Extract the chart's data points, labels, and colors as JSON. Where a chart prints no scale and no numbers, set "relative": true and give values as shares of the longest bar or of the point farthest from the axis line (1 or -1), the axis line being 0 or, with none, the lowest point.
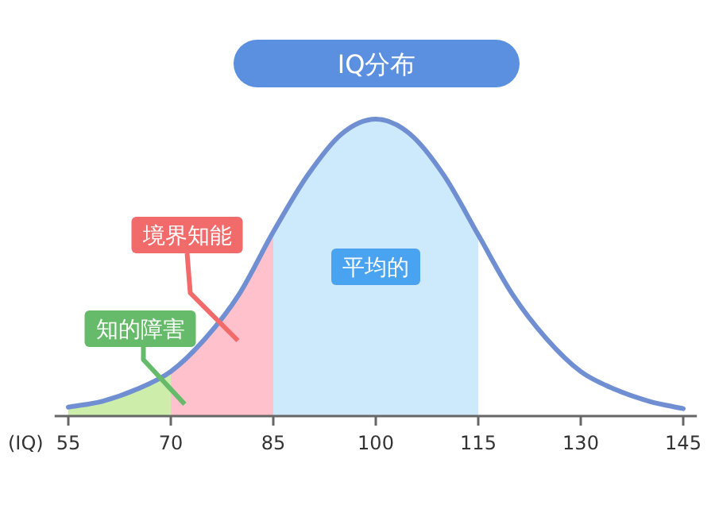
{
  "chart_data": {
    "type": "line",
    "title": "IQ分布",
    "xlabel": "(IQ)",
    "relative": true,
    "x": [
      55,
      60,
      65,
      70,
      75,
      80,
      85,
      90,
      95,
      100,
      105,
      110,
      115,
      120,
      125,
      130,
      135,
      140,
      145
    ],
    "series": [
      {
        "type": "area",
        "name": "知的障害",
        "color": "#cdeeaa",
        "x": [
          55,
          60,
          65,
          70
        ],
        "values": [
          0.03,
          0.05,
          0.09,
          0.15
        ]
      },
      {
        "type": "area",
        "name": "境界知能",
        "color": "#ffc2cc",
        "x": [
          70,
          75,
          80,
          85
        ],
        "values": [
          0.15,
          0.26,
          0.41,
          0.62
        ]
      },
      {
        "type": "area",
        "name": "平均的",
        "color": "#cdeafc",
        "x": [
          85,
          90,
          95,
          100,
          105,
          110,
          115
        ],
        "values": [
          0.62,
          0.81,
          0.95,
          1.0,
          0.95,
          0.81,
          0.61
        ]
      },
      {
        "color": "#6f8fd2",
        "values": [
          0.03,
          0.05,
          0.09,
          0.15,
          0.26,
          0.41,
          0.62,
          0.81,
          0.95,
          1.0,
          0.95,
          0.81,
          0.61,
          0.41,
          0.26,
          0.15,
          0.09,
          0.05,
          0.025
        ]
      }
    ],
    "xlim": [
      53,
      147
    ],
    "xticks": [
      55,
      70,
      85,
      100,
      115,
      130,
      145
    ]
  }
}
